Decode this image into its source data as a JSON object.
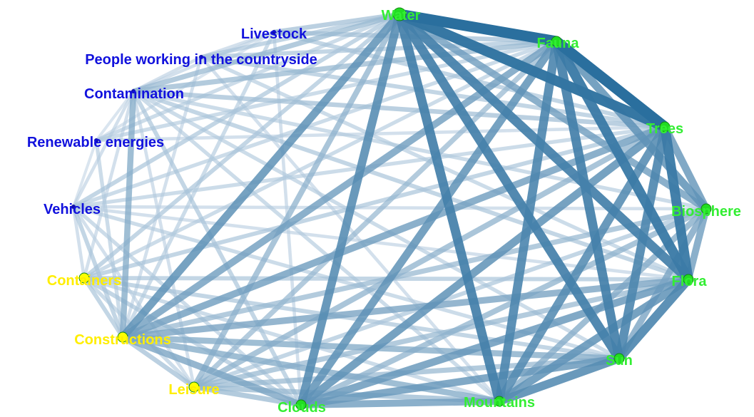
{
  "colors": {
    "group_environment": "#33ee33",
    "group_human": "#1111dd",
    "group_built": "#ffee00",
    "edge_strong": "#2a6f9e",
    "edge_weak": "#dfe8f3",
    "node_fill_green": "#22dd22",
    "node_fill_yellow": "#ffff00",
    "node_fill_blue": "#1111aa"
  },
  "nodes": [
    {
      "id": "water",
      "label": "Water",
      "group": "environment"
    },
    {
      "id": "fauna",
      "label": "Fauna",
      "group": "environment"
    },
    {
      "id": "trees",
      "label": "Trees",
      "group": "environment"
    },
    {
      "id": "biosphere",
      "label": "Biosphere",
      "group": "environment"
    },
    {
      "id": "flora",
      "label": "Flora",
      "group": "environment"
    },
    {
      "id": "sun",
      "label": "Sun",
      "group": "environment"
    },
    {
      "id": "mountains",
      "label": "Mountains",
      "group": "environment"
    },
    {
      "id": "clouds",
      "label": "Clouds",
      "group": "environment"
    },
    {
      "id": "leisure",
      "label": "Leisure",
      "group": "built"
    },
    {
      "id": "constructions",
      "label": "Constructions",
      "group": "built"
    },
    {
      "id": "containers",
      "label": "Containers",
      "group": "built"
    },
    {
      "id": "vehicles",
      "label": "Vehicles",
      "group": "human"
    },
    {
      "id": "renewable",
      "label": "Renewable energies",
      "group": "human"
    },
    {
      "id": "contamination",
      "label": "Contamination",
      "group": "human"
    },
    {
      "id": "people",
      "label": "People working in the countryside",
      "group": "human"
    },
    {
      "id": "livestock",
      "label": "Livestock",
      "group": "human"
    }
  ],
  "edges": [
    [
      "water",
      "fauna",
      1.0
    ],
    [
      "water",
      "trees",
      0.95
    ],
    [
      "water",
      "flora",
      0.85
    ],
    [
      "water",
      "sun",
      0.85
    ],
    [
      "water",
      "mountains",
      0.85
    ],
    [
      "water",
      "clouds",
      0.75
    ],
    [
      "water",
      "constructions",
      0.7
    ],
    [
      "water",
      "biosphere",
      0.6
    ],
    [
      "water",
      "leisure",
      0.45
    ],
    [
      "water",
      "containers",
      0.3
    ],
    [
      "water",
      "vehicles",
      0.3
    ],
    [
      "water",
      "contamination",
      0.4
    ],
    [
      "water",
      "livestock",
      0.35
    ],
    [
      "water",
      "people",
      0.3
    ],
    [
      "water",
      "renewable",
      0.25
    ],
    [
      "fauna",
      "trees",
      1.0
    ],
    [
      "fauna",
      "flora",
      0.9
    ],
    [
      "fauna",
      "sun",
      0.85
    ],
    [
      "fauna",
      "mountains",
      0.8
    ],
    [
      "fauna",
      "clouds",
      0.7
    ],
    [
      "fauna",
      "constructions",
      0.6
    ],
    [
      "fauna",
      "biosphere",
      0.7
    ],
    [
      "fauna",
      "leisure",
      0.4
    ],
    [
      "fauna",
      "contamination",
      0.4
    ],
    [
      "fauna",
      "livestock",
      0.35
    ],
    [
      "fauna",
      "people",
      0.3
    ],
    [
      "fauna",
      "containers",
      0.25
    ],
    [
      "fauna",
      "vehicles",
      0.25
    ],
    [
      "fauna",
      "renewable",
      0.25
    ],
    [
      "trees",
      "flora",
      0.9
    ],
    [
      "trees",
      "sun",
      0.8
    ],
    [
      "trees",
      "mountains",
      0.75
    ],
    [
      "trees",
      "clouds",
      0.7
    ],
    [
      "trees",
      "biosphere",
      0.65
    ],
    [
      "trees",
      "constructions",
      0.6
    ],
    [
      "trees",
      "leisure",
      0.45
    ],
    [
      "trees",
      "contamination",
      0.35
    ],
    [
      "trees",
      "containers",
      0.3
    ],
    [
      "trees",
      "vehicles",
      0.25
    ],
    [
      "trees",
      "people",
      0.3
    ],
    [
      "trees",
      "livestock",
      0.3
    ],
    [
      "trees",
      "renewable",
      0.2
    ],
    [
      "biosphere",
      "flora",
      0.6
    ],
    [
      "biosphere",
      "sun",
      0.55
    ],
    [
      "biosphere",
      "mountains",
      0.5
    ],
    [
      "biosphere",
      "clouds",
      0.45
    ],
    [
      "biosphere",
      "constructions",
      0.4
    ],
    [
      "biosphere",
      "leisure",
      0.3
    ],
    [
      "biosphere",
      "contamination",
      0.25
    ],
    [
      "biosphere",
      "vehicles",
      0.2
    ],
    [
      "flora",
      "sun",
      0.8
    ],
    [
      "flora",
      "mountains",
      0.7
    ],
    [
      "flora",
      "clouds",
      0.65
    ],
    [
      "flora",
      "constructions",
      0.55
    ],
    [
      "flora",
      "leisure",
      0.4
    ],
    [
      "flora",
      "contamination",
      0.3
    ],
    [
      "flora",
      "containers",
      0.3
    ],
    [
      "flora",
      "vehicles",
      0.2
    ],
    [
      "flora",
      "people",
      0.25
    ],
    [
      "sun",
      "mountains",
      0.75
    ],
    [
      "sun",
      "clouds",
      0.65
    ],
    [
      "sun",
      "constructions",
      0.5
    ],
    [
      "sun",
      "leisure",
      0.4
    ],
    [
      "sun",
      "containers",
      0.3
    ],
    [
      "sun",
      "vehicles",
      0.25
    ],
    [
      "sun",
      "contamination",
      0.25
    ],
    [
      "mountains",
      "clouds",
      0.6
    ],
    [
      "mountains",
      "constructions",
      0.5
    ],
    [
      "mountains",
      "leisure",
      0.4
    ],
    [
      "mountains",
      "containers",
      0.25
    ],
    [
      "mountains",
      "contamination",
      0.25
    ],
    [
      "mountains",
      "people",
      0.2
    ],
    [
      "clouds",
      "constructions",
      0.55
    ],
    [
      "clouds",
      "leisure",
      0.4
    ],
    [
      "clouds",
      "containers",
      0.3
    ],
    [
      "clouds",
      "vehicles",
      0.25
    ],
    [
      "clouds",
      "contamination",
      0.3
    ],
    [
      "clouds",
      "livestock",
      0.2
    ],
    [
      "leisure",
      "constructions",
      0.35
    ],
    [
      "leisure",
      "containers",
      0.25
    ],
    [
      "leisure",
      "contamination",
      0.2
    ],
    [
      "leisure",
      "vehicles",
      0.2
    ],
    [
      "constructions",
      "containers",
      0.3
    ],
    [
      "constructions",
      "contamination",
      0.5
    ],
    [
      "constructions",
      "vehicles",
      0.3
    ],
    [
      "constructions",
      "renewable",
      0.25
    ],
    [
      "constructions",
      "people",
      0.2
    ],
    [
      "constructions",
      "livestock",
      0.25
    ],
    [
      "containers",
      "vehicles",
      0.2
    ],
    [
      "containers",
      "contamination",
      0.2
    ],
    [
      "vehicles",
      "contamination",
      0.2
    ],
    [
      "vehicles",
      "renewable",
      0.15
    ],
    [
      "contamination",
      "people",
      0.2
    ],
    [
      "contamination",
      "livestock",
      0.2
    ],
    [
      "contamination",
      "renewable",
      0.15
    ],
    [
      "people",
      "livestock",
      0.2
    ],
    [
      "renewable",
      "livestock",
      0.15
    ]
  ]
}
